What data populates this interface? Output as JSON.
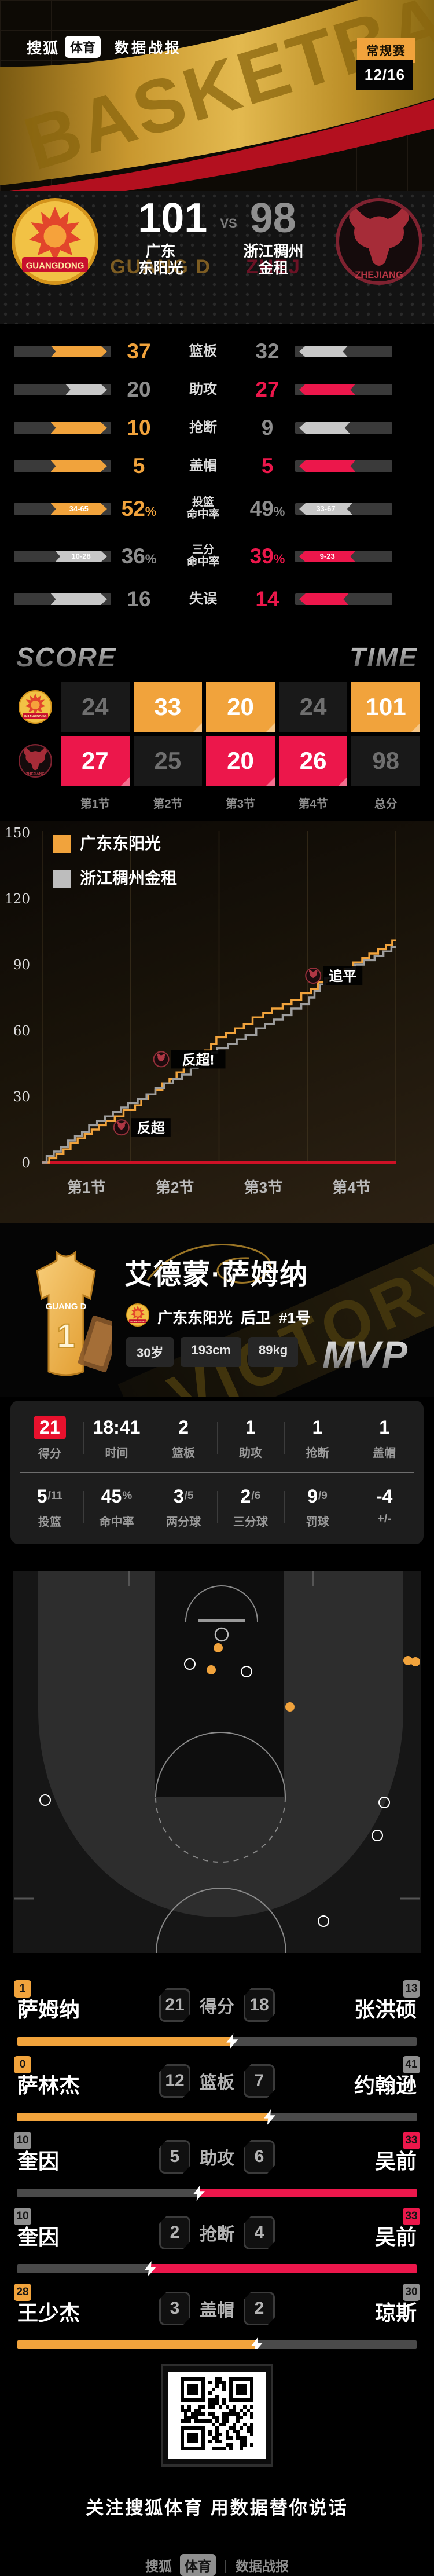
{
  "colors": {
    "accent_orange": "#F1A33C",
    "accent_red": "#EC174B",
    "loser_bar_light": "#C7C7C7",
    "loser_bar_dark": "#4A4A4A",
    "loser_text": "#8D8D8D",
    "baseline_red": "#CE1126",
    "badge_gray": "#8f8f8f"
  },
  "header": {
    "brand": "搜狐",
    "brand_sub": "体育",
    "title": "数据战报",
    "stage_badge": "常规赛",
    "date_badge": "12/16",
    "watermark": "BASKETBALL"
  },
  "scoreboard": {
    "vs": "VS",
    "home": {
      "score": "101",
      "name_line1": "广东",
      "name_line2": "东阳光",
      "ghost": "GUANG D",
      "logo": "GUANGDONG"
    },
    "away": {
      "score": "98",
      "name_line1": "浙江稠州",
      "name_line2": "金租",
      "ghost": "ZHEJ",
      "logo": "ZHEJIANG"
    }
  },
  "team_stats": {
    "rows": [
      {
        "label": [
          "篮板"
        ],
        "home": "37",
        "away": "32",
        "home_value": 37,
        "away_value": 32,
        "winner": "home",
        "home_sub": "",
        "away_sub": ""
      },
      {
        "label": [
          "助攻"
        ],
        "home": "20",
        "away": "27",
        "home_value": 20,
        "away_value": 27,
        "winner": "away",
        "home_sub": "",
        "away_sub": ""
      },
      {
        "label": [
          "抢断"
        ],
        "home": "10",
        "away": "9",
        "home_value": 10,
        "away_value": 9,
        "winner": "home",
        "home_sub": "",
        "away_sub": ""
      },
      {
        "label": [
          "盖帽"
        ],
        "home": "5",
        "away": "5",
        "home_value": 5,
        "away_value": 5,
        "winner": "both",
        "home_sub": "",
        "away_sub": ""
      },
      {
        "label": [
          "投篮",
          "命中率"
        ],
        "home": "52%",
        "away": "49%",
        "home_value": 52,
        "away_value": 49,
        "winner": "home",
        "home_sub": "34-65",
        "away_sub": "33-67"
      },
      {
        "label": [
          "三分",
          "命中率"
        ],
        "home": "36%",
        "away": "39%",
        "home_value": 36,
        "away_value": 39,
        "winner": "away",
        "home_sub": "10-28",
        "away_sub": "9-23"
      },
      {
        "label": [
          "失误"
        ],
        "home": "16",
        "away": "14",
        "home_value": 16,
        "away_value": 14,
        "winner": "away",
        "home_sub": "",
        "away_sub": ""
      }
    ]
  },
  "score_time": {
    "score_title": "SCORE",
    "time_title": "TIME",
    "columns": [
      "第1节",
      "第2节",
      "第3节",
      "第4节",
      "总分"
    ],
    "home_scores": [
      "24",
      "33",
      "20",
      "24",
      "101"
    ],
    "home_highlight": [
      false,
      true,
      true,
      false,
      true
    ],
    "away_scores": [
      "27",
      "25",
      "20",
      "26",
      "98"
    ],
    "away_highlight": [
      true,
      false,
      true,
      true,
      false
    ]
  },
  "chart_data": {
    "type": "line",
    "title": "",
    "xlabel": "",
    "ylabel": "",
    "ylim": [
      0,
      150
    ],
    "yticks": [
      0,
      30,
      60,
      90,
      120,
      150
    ],
    "x_categories": [
      "第1节",
      "第2节",
      "第3节",
      "第4节"
    ],
    "legend_position": "top-left",
    "grid": "vertical-only",
    "legend": [
      {
        "name": "广东东阳光",
        "color": "#F1A33C"
      },
      {
        "name": "浙江稠州金租",
        "color": "#BDBDBD"
      }
    ],
    "quarter_cumulative": {
      "广东东阳光": [
        24,
        57,
        77,
        101
      ],
      "浙江稠州金租": [
        27,
        52,
        72,
        98
      ]
    },
    "series": [
      {
        "name": "广东东阳光",
        "color": "#F1A33C",
        "points": [
          [
            0,
            0
          ],
          [
            0.08,
            2
          ],
          [
            0.16,
            4
          ],
          [
            0.24,
            6
          ],
          [
            0.32,
            9
          ],
          [
            0.4,
            11
          ],
          [
            0.48,
            13
          ],
          [
            0.56,
            15
          ],
          [
            0.64,
            17
          ],
          [
            0.72,
            19
          ],
          [
            0.82,
            21
          ],
          [
            0.92,
            24
          ],
          [
            1.05,
            26
          ],
          [
            1.12,
            29
          ],
          [
            1.2,
            31
          ],
          [
            1.28,
            33
          ],
          [
            1.36,
            36
          ],
          [
            1.44,
            38
          ],
          [
            1.52,
            41
          ],
          [
            1.6,
            44
          ],
          [
            1.68,
            46
          ],
          [
            1.76,
            49
          ],
          [
            1.84,
            51
          ],
          [
            1.91,
            54
          ],
          [
            1.97,
            57
          ],
          [
            2.08,
            59
          ],
          [
            2.18,
            61
          ],
          [
            2.28,
            63
          ],
          [
            2.38,
            66
          ],
          [
            2.5,
            68
          ],
          [
            2.6,
            70
          ],
          [
            2.72,
            72
          ],
          [
            2.82,
            74
          ],
          [
            2.93,
            77
          ],
          [
            3.04,
            79
          ],
          [
            3.12,
            82
          ],
          [
            3.22,
            84
          ],
          [
            3.32,
            86
          ],
          [
            3.42,
            88
          ],
          [
            3.52,
            91
          ],
          [
            3.62,
            93
          ],
          [
            3.7,
            95
          ],
          [
            3.8,
            97
          ],
          [
            3.89,
            99
          ],
          [
            3.96,
            101
          ]
        ]
      },
      {
        "name": "浙江稠州金租",
        "color": "#9E9E9E",
        "points": [
          [
            0,
            0
          ],
          [
            0.05,
            3
          ],
          [
            0.13,
            5
          ],
          [
            0.21,
            7
          ],
          [
            0.29,
            10
          ],
          [
            0.37,
            12
          ],
          [
            0.45,
            14
          ],
          [
            0.53,
            17
          ],
          [
            0.62,
            19
          ],
          [
            0.71,
            21
          ],
          [
            0.8,
            23
          ],
          [
            0.89,
            25
          ],
          [
            0.97,
            27
          ],
          [
            1.08,
            29
          ],
          [
            1.18,
            31
          ],
          [
            1.28,
            34
          ],
          [
            1.38,
            36
          ],
          [
            1.48,
            38
          ],
          [
            1.58,
            40
          ],
          [
            1.68,
            43
          ],
          [
            1.76,
            45
          ],
          [
            1.84,
            48
          ],
          [
            1.92,
            50
          ],
          [
            1.98,
            52
          ],
          [
            2.1,
            54
          ],
          [
            2.2,
            56
          ],
          [
            2.3,
            58
          ],
          [
            2.42,
            61
          ],
          [
            2.52,
            63
          ],
          [
            2.62,
            65
          ],
          [
            2.72,
            67
          ],
          [
            2.82,
            70
          ],
          [
            2.93,
            72
          ],
          [
            3.02,
            75
          ],
          [
            3.08,
            78
          ],
          [
            3.14,
            81
          ],
          [
            3.2,
            84
          ],
          [
            3.34,
            86
          ],
          [
            3.44,
            88
          ],
          [
            3.54,
            90
          ],
          [
            3.64,
            92
          ],
          [
            3.76,
            94
          ],
          [
            3.86,
            96
          ],
          [
            3.95,
            98
          ]
        ]
      }
    ],
    "annotations": [
      {
        "label": "反超",
        "team": "浙江稠州金租",
        "x": 0.83,
        "y": 16
      },
      {
        "label": "反超!",
        "team": "浙江稠州金租",
        "x": 1.28,
        "y": 47
      },
      {
        "label": "追平",
        "team": "浙江稠州金租",
        "x": 3.0,
        "y": 85
      }
    ]
  },
  "mvp_card": {
    "name": "艾德蒙·萨姆纳",
    "team": "广东东阳光",
    "position": "后卫",
    "number": "#1号",
    "tags": [
      "30岁",
      "193cm",
      "89kg"
    ],
    "mvp_label": "MVP",
    "ribbon": "VICTORY",
    "jersey_text": "GUANG D",
    "jersey_number": "1",
    "stats_row1": [
      {
        "value": "21",
        "label": "得分",
        "highlight": true
      },
      {
        "value": "18:41",
        "label": "时间"
      },
      {
        "value": "2",
        "label": "篮板"
      },
      {
        "value": "1",
        "label": "助攻"
      },
      {
        "value": "1",
        "label": "抢断"
      },
      {
        "value": "1",
        "label": "盖帽"
      }
    ],
    "stats_row2": [
      {
        "value": "5",
        "suffix": "/11",
        "label": "投篮"
      },
      {
        "value": "45",
        "suffix": "%",
        "label": "命中率"
      },
      {
        "value": "3",
        "suffix": "/5",
        "label": "两分球"
      },
      {
        "value": "2",
        "suffix": "/6",
        "label": "三分球"
      },
      {
        "value": "9",
        "suffix": "/9",
        "label": "罚球"
      },
      {
        "value": "-4",
        "suffix": "",
        "label": "+/-"
      }
    ]
  },
  "shot_chart": {
    "made_color": "#F1A33C",
    "missed_color": "#FFFFFF",
    "made": [
      [
        377,
        163
      ],
      [
        365,
        201
      ],
      [
        501,
        265
      ],
      [
        705,
        185
      ],
      [
        718,
        187
      ]
    ],
    "missed": [
      [
        328,
        191
      ],
      [
        426,
        204
      ],
      [
        78,
        426
      ],
      [
        664,
        430
      ],
      [
        652,
        487
      ],
      [
        559,
        635
      ]
    ]
  },
  "player_comparison": {
    "rows": [
      {
        "stat": "得分",
        "left_name": "萨姆纳",
        "left_num": "1",
        "right_name": "张洪硕",
        "right_num": "13",
        "left_value": 21,
        "right_value": 18,
        "winner": "left"
      },
      {
        "stat": "篮板",
        "left_name": "萨林杰",
        "left_num": "0",
        "right_name": "约翰逊",
        "right_num": "41",
        "left_value": 12,
        "right_value": 7,
        "winner": "left"
      },
      {
        "stat": "助攻",
        "left_name": "奎因",
        "left_num": "10",
        "right_name": "吴前",
        "right_num": "33",
        "left_value": 5,
        "right_value": 6,
        "winner": "right"
      },
      {
        "stat": "抢断",
        "left_name": "奎因",
        "left_num": "10",
        "right_name": "吴前",
        "right_num": "33",
        "left_value": 2,
        "right_value": 4,
        "winner": "right"
      },
      {
        "stat": "盖帽",
        "left_name": "王少杰",
        "left_num": "28",
        "right_name": "琼斯",
        "right_num": "30",
        "left_value": 3,
        "right_value": 2,
        "winner": "left"
      }
    ]
  },
  "footer": {
    "slogan": "关注搜狐体育 用数据替你说话",
    "brand": "搜狐",
    "brand_sub": "体育",
    "divider": "|",
    "title": "数据战报"
  }
}
